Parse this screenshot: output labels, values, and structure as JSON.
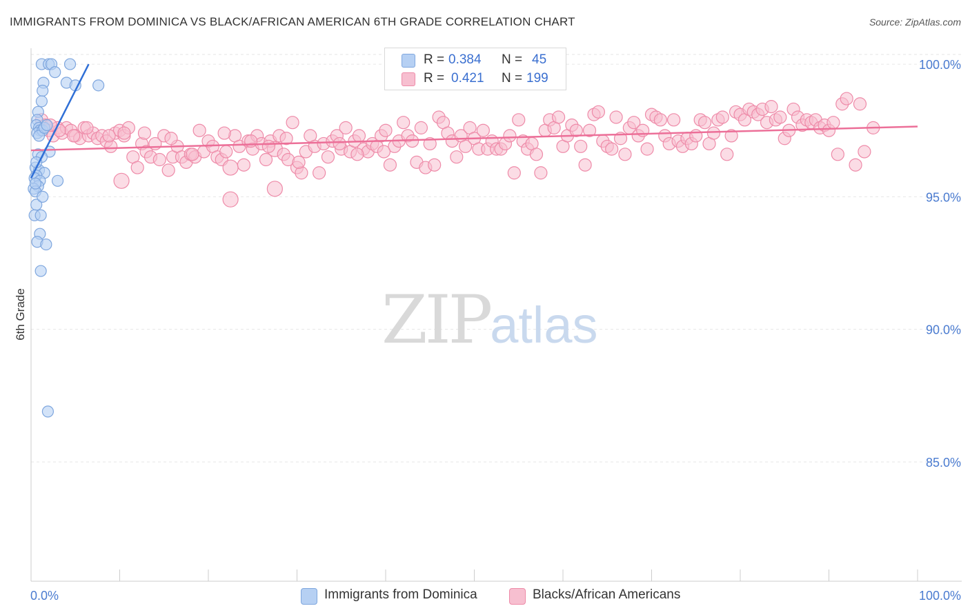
{
  "title": "IMMIGRANTS FROM DOMINICA VS BLACK/AFRICAN AMERICAN 6TH GRADE CORRELATION CHART",
  "source": "Source: ZipAtlas.com",
  "watermark": {
    "zip": "ZIP",
    "atlas": "atlas"
  },
  "legend": {
    "r_label": "R =",
    "n_label": "N =",
    "series": [
      {
        "r": "0.384",
        "n": "45"
      },
      {
        "r": "0.421",
        "n": "199"
      }
    ]
  },
  "colors": {
    "blue_fill": "#b6d0f3",
    "blue_stroke": "#7ea6de",
    "blue_line": "#2f6fd6",
    "pink_fill": "#f7bfd0",
    "pink_stroke": "#ee8aa8",
    "pink_line": "#ec6f98",
    "axis_text": "#4a7bd0",
    "grid": "#e6e6e6"
  },
  "chart_data": {
    "type": "scatter",
    "title": "IMMIGRANTS FROM DOMINICA VS BLACK/AFRICAN AMERICAN 6TH GRADE CORRELATION CHART",
    "xlabel": "",
    "ylabel": "6th Grade",
    "xlim": [
      0,
      100
    ],
    "ylim": [
      80.5,
      100.6
    ],
    "x_ticks": [
      "0.0%",
      "100.0%"
    ],
    "y_ticks": [
      {
        "value": 100,
        "label": "100.0%"
      },
      {
        "value": 95,
        "label": "95.0%"
      },
      {
        "value": 90,
        "label": "90.0%"
      },
      {
        "value": 85,
        "label": "85.0%"
      }
    ],
    "grid": true,
    "legend_position": "bottom",
    "series": [
      {
        "name": "Immigrants from Dominica",
        "r": 0.384,
        "n": 45,
        "trend": {
          "x": [
            0,
            6.5
          ],
          "y": [
            95.7,
            100.0
          ]
        },
        "points": [
          [
            1.2,
            100.0
          ],
          [
            2.0,
            100.0
          ],
          [
            2.3,
            100.0
          ],
          [
            4.4,
            100.0
          ],
          [
            1.4,
            99.3
          ],
          [
            2.7,
            99.7
          ],
          [
            4.0,
            99.3
          ],
          [
            5.0,
            99.2
          ],
          [
            7.6,
            99.2
          ],
          [
            1.3,
            99.0
          ],
          [
            1.2,
            98.6
          ],
          [
            0.8,
            98.2
          ],
          [
            0.7,
            97.9
          ],
          [
            0.6,
            97.7
          ],
          [
            0.9,
            97.6
          ],
          [
            1.0,
            97.5
          ],
          [
            0.7,
            97.4
          ],
          [
            1.3,
            97.5
          ],
          [
            0.8,
            96.6
          ],
          [
            2.1,
            96.7
          ],
          [
            1.2,
            96.5
          ],
          [
            0.5,
            96.1
          ],
          [
            0.9,
            96.0
          ],
          [
            1.5,
            95.9
          ],
          [
            0.6,
            95.8
          ],
          [
            0.4,
            95.7
          ],
          [
            1.0,
            95.6
          ],
          [
            3.0,
            95.6
          ],
          [
            0.8,
            95.4
          ],
          [
            0.3,
            95.3
          ],
          [
            0.5,
            95.2
          ],
          [
            0.6,
            94.7
          ],
          [
            0.4,
            94.3
          ],
          [
            1.1,
            94.3
          ],
          [
            1.0,
            93.6
          ],
          [
            0.7,
            93.3
          ],
          [
            1.7,
            93.2
          ],
          [
            1.1,
            92.2
          ],
          [
            1.9,
            86.9
          ],
          [
            0.9,
            97.3
          ],
          [
            1.5,
            97.6
          ],
          [
            0.6,
            96.3
          ],
          [
            1.8,
            97.7
          ],
          [
            0.5,
            95.5
          ],
          [
            1.3,
            95.0
          ]
        ]
      },
      {
        "name": "Blacks/African Americans",
        "r": 0.421,
        "n": 199,
        "trend": {
          "x": [
            0,
            100
          ],
          "y": [
            96.75,
            97.65
          ]
        },
        "points": [
          [
            1.2,
            97.9
          ],
          [
            1.6,
            97.7
          ],
          [
            2.0,
            97.5
          ],
          [
            2.5,
            97.3
          ],
          [
            3.0,
            97.6
          ],
          [
            3.5,
            97.4
          ],
          [
            4.0,
            97.6
          ],
          [
            4.5,
            97.5
          ],
          [
            5.0,
            97.3
          ],
          [
            5.5,
            97.2
          ],
          [
            6.0,
            97.6
          ],
          [
            6.5,
            97.3
          ],
          [
            7.0,
            97.4
          ],
          [
            7.5,
            97.2
          ],
          [
            8.0,
            97.3
          ],
          [
            8.5,
            97.1
          ],
          [
            9.0,
            96.9
          ],
          [
            9.5,
            97.4
          ],
          [
            10.0,
            97.5
          ],
          [
            10.5,
            97.3
          ],
          [
            11.0,
            97.6
          ],
          [
            11.5,
            96.5
          ],
          [
            12.0,
            96.1
          ],
          [
            12.5,
            97.0
          ],
          [
            13.0,
            96.7
          ],
          [
            13.5,
            96.5
          ],
          [
            14.0,
            97.0
          ],
          [
            14.5,
            96.4
          ],
          [
            15.0,
            97.3
          ],
          [
            15.5,
            96.0
          ],
          [
            16.0,
            96.5
          ],
          [
            16.5,
            96.9
          ],
          [
            17.0,
            96.5
          ],
          [
            17.5,
            96.3
          ],
          [
            18.0,
            96.6
          ],
          [
            18.5,
            96.5
          ],
          [
            19.0,
            97.5
          ],
          [
            19.5,
            96.7
          ],
          [
            20.0,
            97.1
          ],
          [
            20.5,
            96.9
          ],
          [
            21.0,
            96.5
          ],
          [
            21.5,
            96.4
          ],
          [
            22.0,
            96.7
          ],
          [
            22.5,
            96.1
          ],
          [
            23.0,
            97.3
          ],
          [
            23.5,
            96.9
          ],
          [
            24.0,
            96.2
          ],
          [
            24.5,
            97.1
          ],
          [
            25.0,
            96.8
          ],
          [
            25.5,
            97.3
          ],
          [
            26.0,
            97.0
          ],
          [
            26.5,
            96.4
          ],
          [
            27.0,
            97.1
          ],
          [
            27.5,
            96.8
          ],
          [
            28.0,
            97.3
          ],
          [
            28.5,
            96.6
          ],
          [
            29.0,
            96.4
          ],
          [
            29.5,
            97.8
          ],
          [
            30.0,
            96.1
          ],
          [
            30.5,
            95.9
          ],
          [
            31.0,
            96.7
          ],
          [
            31.5,
            97.3
          ],
          [
            32.0,
            96.9
          ],
          [
            32.5,
            95.9
          ],
          [
            33.0,
            97.0
          ],
          [
            33.5,
            96.5
          ],
          [
            34.0,
            97.1
          ],
          [
            34.5,
            97.3
          ],
          [
            35.0,
            96.8
          ],
          [
            35.5,
            97.6
          ],
          [
            36.0,
            96.7
          ],
          [
            36.5,
            97.1
          ],
          [
            37.0,
            97.3
          ],
          [
            37.5,
            96.8
          ],
          [
            38.0,
            96.7
          ],
          [
            38.5,
            97.0
          ],
          [
            39.0,
            96.9
          ],
          [
            39.5,
            97.3
          ],
          [
            40.0,
            97.5
          ],
          [
            40.5,
            96.2
          ],
          [
            41.0,
            96.9
          ],
          [
            41.5,
            97.1
          ],
          [
            42.0,
            97.8
          ],
          [
            42.5,
            97.3
          ],
          [
            43.0,
            97.1
          ],
          [
            43.5,
            96.3
          ],
          [
            44.0,
            97.6
          ],
          [
            44.5,
            96.1
          ],
          [
            45.0,
            97.0
          ],
          [
            45.5,
            96.2
          ],
          [
            46.0,
            98.0
          ],
          [
            46.5,
            97.8
          ],
          [
            47.0,
            97.4
          ],
          [
            47.5,
            97.1
          ],
          [
            48.0,
            96.5
          ],
          [
            48.5,
            97.3
          ],
          [
            49.0,
            96.9
          ],
          [
            49.5,
            97.6
          ],
          [
            50.0,
            97.2
          ],
          [
            50.5,
            96.8
          ],
          [
            51.0,
            97.5
          ],
          [
            51.5,
            96.8
          ],
          [
            52.0,
            97.1
          ],
          [
            52.5,
            96.8
          ],
          [
            53.0,
            96.8
          ],
          [
            53.5,
            97.0
          ],
          [
            54.0,
            97.3
          ],
          [
            54.5,
            95.9
          ],
          [
            55.0,
            97.9
          ],
          [
            55.5,
            97.1
          ],
          [
            56.0,
            96.8
          ],
          [
            56.5,
            97.0
          ],
          [
            57.0,
            96.6
          ],
          [
            57.5,
            95.9
          ],
          [
            58.0,
            97.5
          ],
          [
            58.5,
            97.9
          ],
          [
            59.0,
            97.6
          ],
          [
            59.5,
            98.0
          ],
          [
            60.0,
            96.9
          ],
          [
            60.5,
            97.3
          ],
          [
            61.0,
            97.7
          ],
          [
            61.5,
            97.5
          ],
          [
            62.0,
            96.9
          ],
          [
            62.5,
            96.2
          ],
          [
            63.0,
            97.5
          ],
          [
            63.5,
            98.1
          ],
          [
            64.0,
            98.2
          ],
          [
            64.5,
            97.1
          ],
          [
            65.0,
            96.9
          ],
          [
            65.5,
            96.8
          ],
          [
            66.0,
            98.0
          ],
          [
            66.5,
            97.2
          ],
          [
            67.0,
            96.6
          ],
          [
            67.5,
            97.6
          ],
          [
            68.0,
            97.8
          ],
          [
            68.5,
            97.3
          ],
          [
            69.0,
            97.5
          ],
          [
            69.5,
            96.8
          ],
          [
            70.0,
            98.1
          ],
          [
            70.5,
            98.0
          ],
          [
            71.0,
            97.9
          ],
          [
            71.5,
            97.3
          ],
          [
            72.0,
            97.0
          ],
          [
            72.5,
            97.9
          ],
          [
            73.0,
            97.1
          ],
          [
            73.5,
            96.9
          ],
          [
            74.0,
            97.2
          ],
          [
            74.5,
            97.0
          ],
          [
            75.0,
            97.3
          ],
          [
            75.5,
            97.9
          ],
          [
            76.0,
            97.8
          ],
          [
            76.5,
            97.0
          ],
          [
            77.0,
            97.4
          ],
          [
            77.5,
            97.9
          ],
          [
            78.0,
            98.0
          ],
          [
            78.5,
            96.6
          ],
          [
            79.0,
            97.3
          ],
          [
            79.5,
            98.2
          ],
          [
            80.0,
            98.1
          ],
          [
            80.5,
            97.9
          ],
          [
            81.0,
            98.3
          ],
          [
            81.5,
            98.2
          ],
          [
            82.0,
            98.1
          ],
          [
            82.5,
            98.3
          ],
          [
            83.0,
            97.8
          ],
          [
            83.5,
            98.4
          ],
          [
            84.0,
            97.9
          ],
          [
            84.5,
            98.0
          ],
          [
            85.0,
            97.2
          ],
          [
            85.5,
            97.5
          ],
          [
            86.0,
            98.3
          ],
          [
            86.5,
            98.0
          ],
          [
            87.0,
            97.7
          ],
          [
            87.5,
            97.9
          ],
          [
            88.0,
            97.8
          ],
          [
            88.5,
            97.9
          ],
          [
            89.0,
            97.6
          ],
          [
            89.5,
            97.7
          ],
          [
            90.0,
            97.5
          ],
          [
            90.5,
            97.8
          ],
          [
            91.0,
            96.6
          ],
          [
            91.5,
            98.5
          ],
          [
            92.0,
            98.7
          ],
          [
            93.0,
            96.2
          ],
          [
            93.5,
            98.5
          ],
          [
            94.0,
            96.7
          ],
          [
            95.0,
            97.6
          ],
          [
            10.5,
            97.4
          ],
          [
            27.5,
            95.3
          ],
          [
            22.5,
            94.9
          ],
          [
            10.2,
            95.6
          ],
          [
            3.2,
            97.5
          ],
          [
            2.2,
            97.7
          ],
          [
            4.8,
            97.3
          ],
          [
            6.3,
            97.6
          ],
          [
            8.8,
            97.3
          ],
          [
            12.8,
            97.4
          ],
          [
            15.8,
            97.2
          ],
          [
            18.2,
            96.6
          ],
          [
            21.8,
            97.4
          ],
          [
            24.8,
            97.1
          ],
          [
            26.8,
            96.9
          ],
          [
            28.8,
            97.2
          ],
          [
            30.2,
            96.3
          ],
          [
            34.8,
            97.0
          ],
          [
            36.8,
            96.6
          ],
          [
            39.8,
            96.7
          ]
        ]
      }
    ]
  },
  "bottom_legend": [
    "Immigrants from Dominica",
    "Blacks/African Americans"
  ]
}
